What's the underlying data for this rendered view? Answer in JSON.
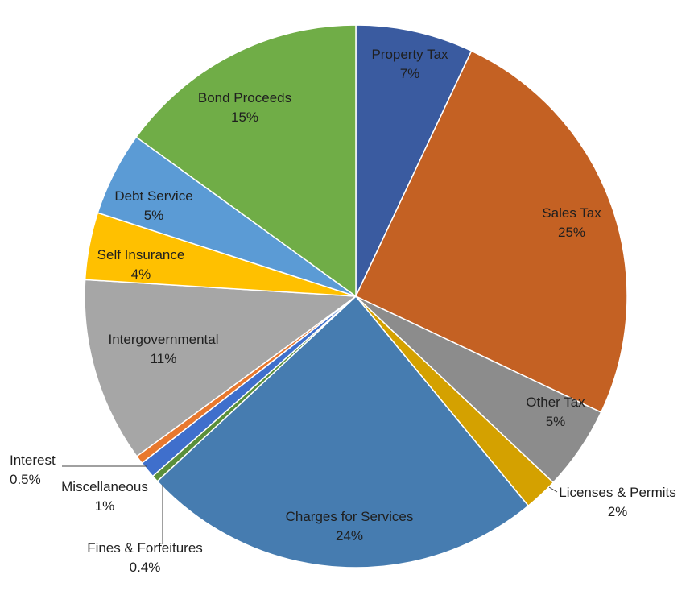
{
  "chart_data": {
    "type": "pie",
    "title": "",
    "slices": [
      {
        "name": "Property Tax",
        "value": 7,
        "percent_label": "7%",
        "color": "#3A5BA0"
      },
      {
        "name": "Sales Tax",
        "value": 25,
        "percent_label": "25%",
        "color": "#C46123"
      },
      {
        "name": "Other Tax",
        "value": 5,
        "percent_label": "5%",
        "color": "#8C8C8C"
      },
      {
        "name": "Licenses & Permits",
        "value": 2,
        "percent_label": "2%",
        "color": "#D4A100"
      },
      {
        "name": "Charges for Services",
        "value": 24,
        "percent_label": "24%",
        "color": "#467CB0"
      },
      {
        "name": "Fines & Forfeitures",
        "value": 0.4,
        "percent_label": "0.4%",
        "color": "#5A8F3A"
      },
      {
        "name": "Miscellaneous",
        "value": 1,
        "percent_label": "1%",
        "color": "#3F6FCC"
      },
      {
        "name": "Interest",
        "value": 0.5,
        "percent_label": "0.5%",
        "color": "#E8782E"
      },
      {
        "name": "Intergovernmental",
        "value": 11,
        "percent_label": "11%",
        "color": "#A6A6A6"
      },
      {
        "name": "Self Insurance",
        "value": 4,
        "percent_label": "4%",
        "color": "#FFC000"
      },
      {
        "name": "Debt Service",
        "value": 5,
        "percent_label": "5%",
        "color": "#5B9BD5"
      },
      {
        "name": "Bond Proceeds",
        "value": 15,
        "percent_label": "15%",
        "color": "#70AD47"
      }
    ]
  }
}
